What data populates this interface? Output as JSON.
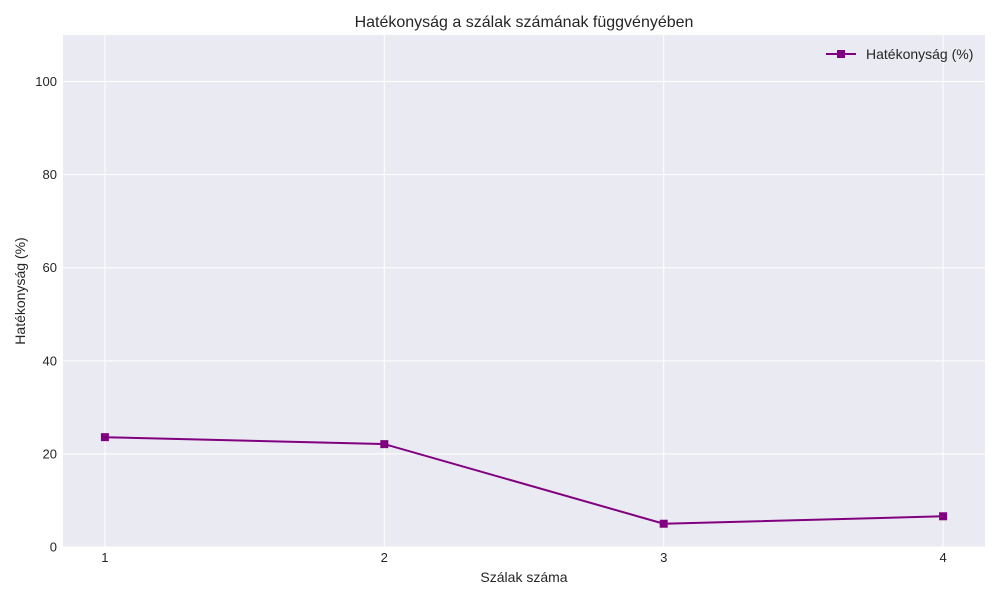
{
  "chart_data": {
    "type": "line",
    "title": "Hatékonyság a szálak számának függvényében",
    "xlabel": "Szálak száma",
    "ylabel": "Hatékonyság (%)",
    "x": [
      1,
      2,
      3,
      4
    ],
    "xticks": [
      "1",
      "2",
      "3",
      "4"
    ],
    "xlim": [
      0.85,
      4.15
    ],
    "ylim": [
      0,
      110
    ],
    "yticks": [
      "0",
      "20",
      "40",
      "60",
      "80",
      "100"
    ],
    "grid": true,
    "legend_position": "top-right",
    "series": [
      {
        "name": "Hatékonyság (%)",
        "marker": "square",
        "color": "#800080",
        "values": [
          23.6,
          22.1,
          5.0,
          6.6
        ]
      }
    ],
    "background_color": "#eaeaf2",
    "grid_color": "#ffffff"
  }
}
